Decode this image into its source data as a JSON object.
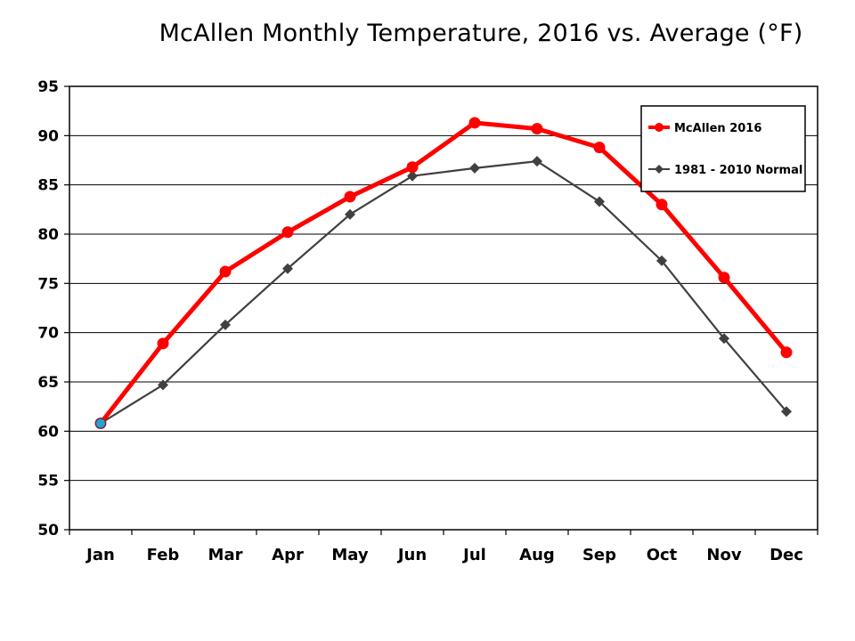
{
  "chart_data": {
    "type": "line",
    "title": "McAllen Monthly Temperature, 2016 vs. Average (°F)",
    "categories": [
      "Jan",
      "Feb",
      "Mar",
      "Apr",
      "May",
      "Jun",
      "Jul",
      "Aug",
      "Sep",
      "Oct",
      "Nov",
      "Dec"
    ],
    "yticks": [
      "50",
      "55",
      "60",
      "65",
      "70",
      "75",
      "80",
      "85",
      "90",
      "95"
    ],
    "ylim": [
      50,
      95
    ],
    "grid": true,
    "legend_position": "top-right",
    "series": [
      {
        "name": "McAllen 2016",
        "color": "#ff0000",
        "marker": "circle",
        "values": [
          60.8,
          68.9,
          76.2,
          80.2,
          83.8,
          86.8,
          91.3,
          90.7,
          88.8,
          83.0,
          75.6,
          68.0
        ]
      },
      {
        "name": "1981 - 2010 Normal",
        "color": "#404040",
        "marker": "diamond",
        "values": [
          60.8,
          64.7,
          70.8,
          76.5,
          82.0,
          85.9,
          86.7,
          87.4,
          83.3,
          77.3,
          69.4,
          62.0
        ]
      }
    ]
  }
}
